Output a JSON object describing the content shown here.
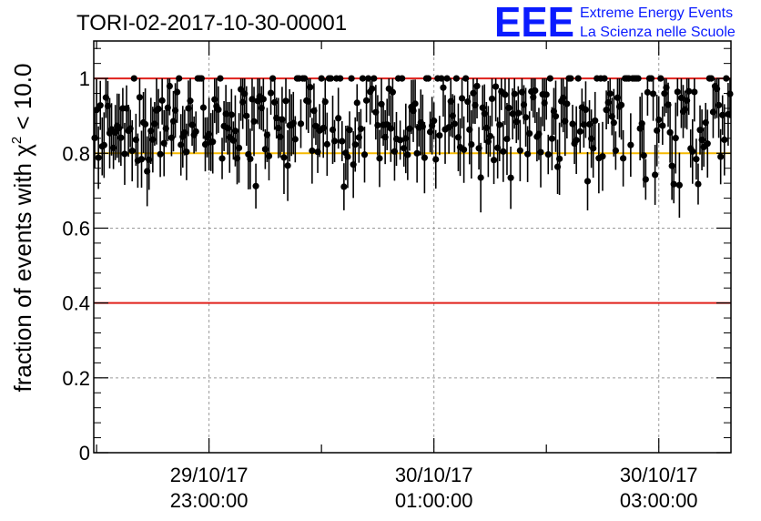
{
  "chart_data": {
    "type": "scatter",
    "title": "TORI-02-2017-10-30-00001",
    "ylabel_prefix": "fraction of events with ",
    "ylabel_chi": "χ",
    "ylabel_sup": "2",
    "ylabel_suffix": " < 10.0",
    "xlabel": "",
    "x_start": "29/10/17 21:58:30",
    "x_end": "30/10/17 03:38:30",
    "xlim": [
      "29/10/17 21:58:30",
      "30/10/17 03:38:30"
    ],
    "ylim": [
      0,
      1.1
    ],
    "grid": true,
    "y_ticks": [
      {
        "value": 0,
        "label": "0"
      },
      {
        "value": 0.2,
        "label": "0.2"
      },
      {
        "value": 0.4,
        "label": "0.4"
      },
      {
        "value": 0.6,
        "label": "0.6"
      },
      {
        "value": 0.8,
        "label": "0.8"
      },
      {
        "value": 1,
        "label": "1"
      }
    ],
    "x_ticks": [
      {
        "time": "29/10/17 23:00:00",
        "line1": "29/10/17",
        "line2": "23:00:00"
      },
      {
        "time": "30/10/17 01:00:00",
        "line1": "30/10/17",
        "line2": "01:00:00"
      },
      {
        "time": "30/10/17 03:00:00",
        "line1": "30/10/17",
        "line2": "03:00:00"
      }
    ],
    "reference_lines": [
      {
        "y": 1.0,
        "color": "#e0201b"
      },
      {
        "y": 0.8,
        "color": "#f5b800"
      },
      {
        "y": 0.4,
        "color": "#e0201b"
      }
    ],
    "series": [
      {
        "color": "#000000",
        "points_count": 340,
        "mean_fraction": 0.89,
        "min_fraction": 0.62,
        "max_fraction": 1.0,
        "typical_error": 0.07
      }
    ]
  },
  "logo": {
    "mark": "EEE",
    "line1": "Extreme Energy Events",
    "line2": "La Scienza nelle Scuole",
    "color": "#0a1bff"
  }
}
